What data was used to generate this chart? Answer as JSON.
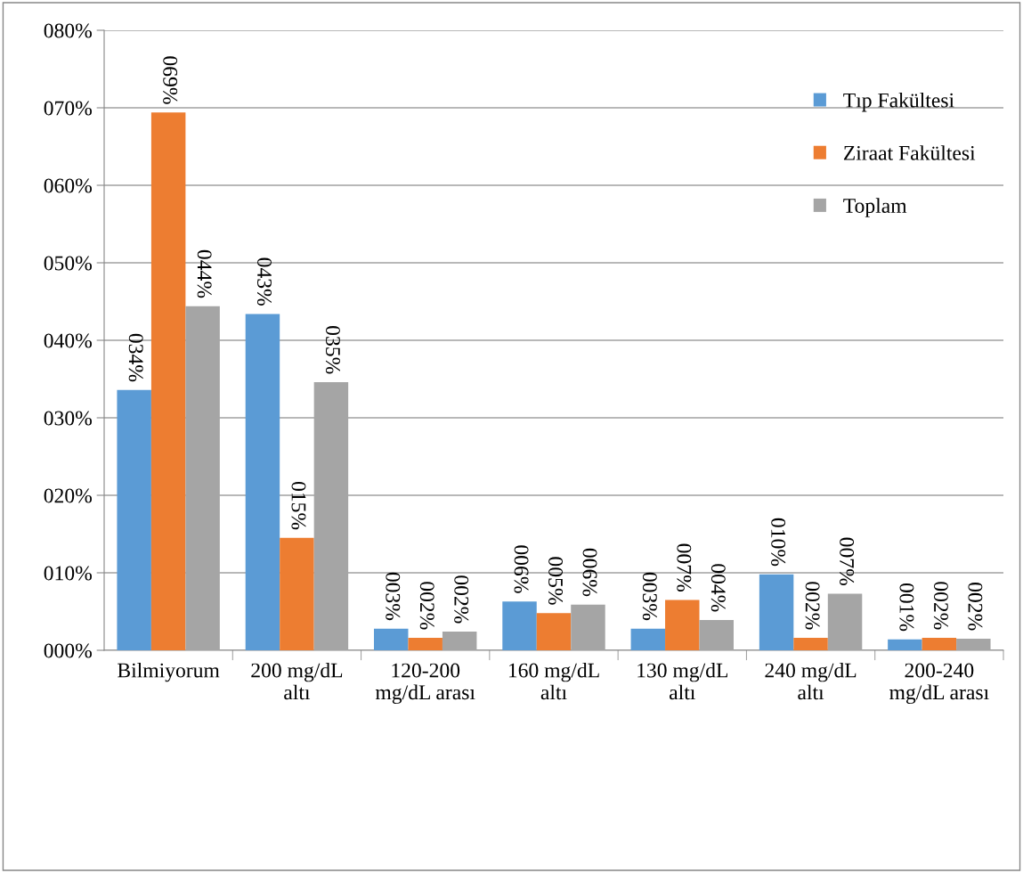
{
  "chart_data": {
    "type": "bar",
    "categories": [
      "Bilmiyorum",
      "200 mg/dL\naltı",
      "120-200\nmg/dL arası",
      "160 mg/dL\naltı",
      "130 mg/dL\naltı",
      "240 mg/dL\naltı",
      "200-240\nmg/dL arası"
    ],
    "series": [
      {
        "name": "Tıp Fakültesi",
        "color": "#5b9bd5",
        "values": [
          33.6,
          43.4,
          2.8,
          6.3,
          2.8,
          9.8,
          1.4
        ],
        "value_labels": [
          "034%",
          "043%",
          "003%",
          "006%",
          "003%",
          "010%",
          "001%"
        ]
      },
      {
        "name": "Ziraat Fakültesi",
        "color": "#ed7d31",
        "values": [
          69.4,
          14.5,
          1.6,
          4.8,
          6.5,
          1.6,
          1.6
        ],
        "value_labels": [
          "069%",
          "015%",
          "002%",
          "005%",
          "007%",
          "002%",
          "002%"
        ]
      },
      {
        "name": "Toplam",
        "color": "#a5a5a5",
        "values": [
          44.4,
          34.6,
          2.4,
          5.9,
          3.9,
          7.3,
          1.5
        ],
        "value_labels": [
          "044%",
          "035%",
          "002%",
          "006%",
          "004%",
          "007%",
          "002%"
        ]
      }
    ],
    "ylim": [
      0,
      80
    ],
    "yticks": [
      {
        "value": 0,
        "label": "000%"
      },
      {
        "value": 10,
        "label": "010%"
      },
      {
        "value": 20,
        "label": "020%"
      },
      {
        "value": 30,
        "label": "030%"
      },
      {
        "value": 40,
        "label": "040%"
      },
      {
        "value": 50,
        "label": "050%"
      },
      {
        "value": 60,
        "label": "060%"
      },
      {
        "value": 70,
        "label": "070%"
      },
      {
        "value": 80,
        "label": "080%"
      }
    ],
    "grid": "y",
    "legend": "top right"
  }
}
